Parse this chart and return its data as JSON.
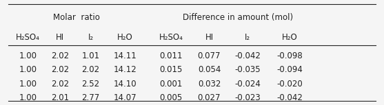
{
  "header_group1": "Molar  ratio",
  "header_group2": "Difference in amount (mol)",
  "col_headers": [
    "H₂SO₄",
    "HI",
    "I₂",
    "H₂O",
    "H₂SO₄",
    "HI",
    "I₂",
    "H₂O"
  ],
  "rows": [
    [
      "1.00",
      "2.02",
      "1.01",
      "14.11",
      "0.011",
      "0.077",
      "-0.042",
      "-0.098"
    ],
    [
      "1.00",
      "2.02",
      "2.02",
      "14.12",
      "0.015",
      "0.054",
      "-0.035",
      "-0.094"
    ],
    [
      "1.00",
      "2.02",
      "2.52",
      "14.10",
      "0.001",
      "0.032",
      "-0.024",
      "-0.020"
    ],
    [
      "1.00",
      "2.01",
      "2.77",
      "14.07",
      "0.005",
      "0.027",
      "-0.023",
      "-0.042"
    ]
  ],
  "background_color": "#f5f5f5",
  "text_color": "#222222",
  "font_size": 8.5,
  "header_font_size": 8.5
}
